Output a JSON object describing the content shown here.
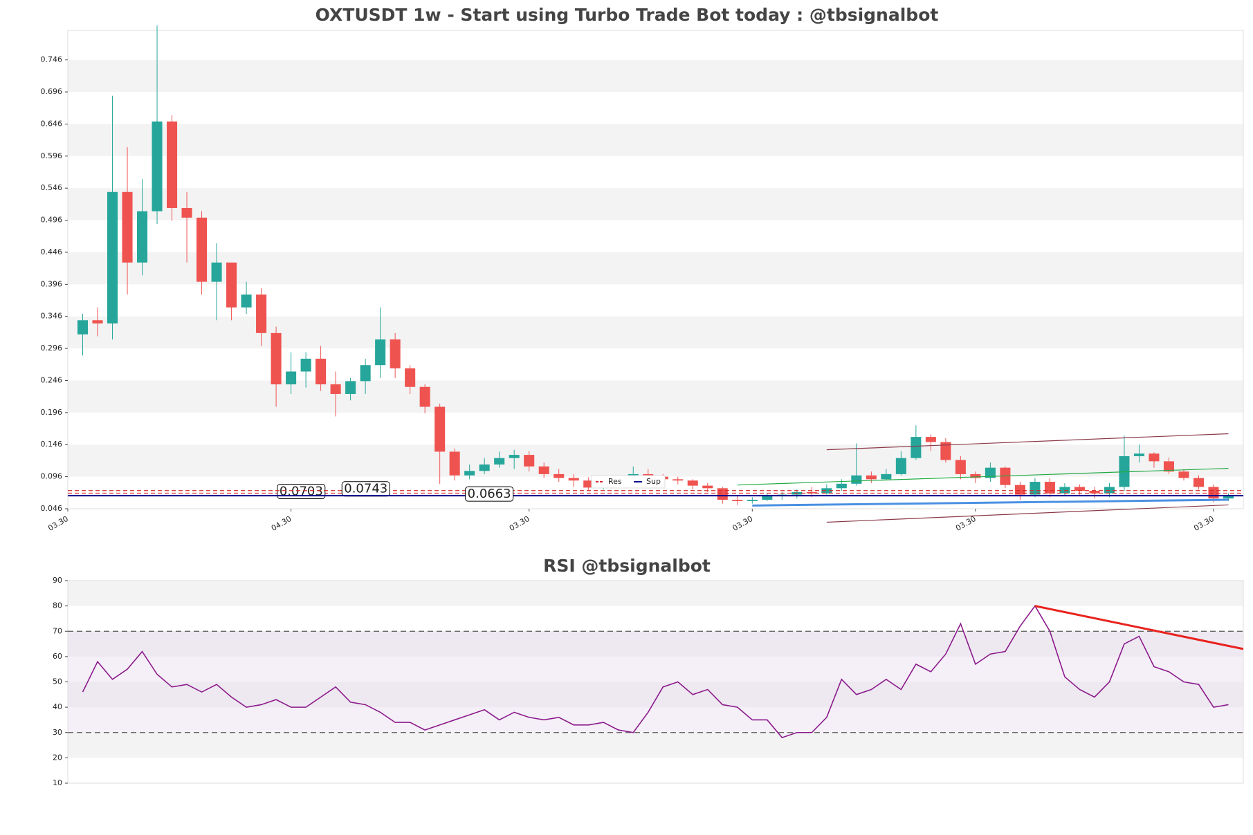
{
  "chart_data": [
    {
      "type": "candlestick",
      "title": "OXTUSDT 1w - Start using Turbo Trade Bot today : @tbsignalbot",
      "up_color": "#26a69a",
      "down_color": "#ef5350",
      "candles": {
        "open": [
          0.318,
          0.34,
          0.335,
          0.54,
          0.43,
          0.51,
          0.65,
          0.515,
          0.5,
          0.4,
          0.43,
          0.36,
          0.38,
          0.32,
          0.24,
          0.26,
          0.28,
          0.24,
          0.225,
          0.245,
          0.27,
          0.31,
          0.265,
          0.236,
          0.205,
          0.135,
          0.098,
          0.105,
          0.115,
          0.125,
          0.13,
          0.112,
          0.1,
          0.094,
          0.09,
          0.079,
          0.082,
          0.085,
          0.1,
          0.096,
          0.092,
          0.09,
          0.082,
          0.078,
          0.06,
          0.058,
          0.06,
          0.066,
          0.068,
          0.072,
          0.07,
          0.078,
          0.085,
          0.098,
          0.092,
          0.1,
          0.125,
          0.158,
          0.15,
          0.122,
          0.1,
          0.094,
          0.11,
          0.083,
          0.068,
          0.088,
          0.07,
          0.08,
          0.074,
          0.07,
          0.08,
          0.128,
          0.132,
          0.12,
          0.104,
          0.094,
          0.08,
          0.062
        ],
        "high": [
          0.35,
          0.36,
          0.69,
          0.61,
          0.56,
          0.8,
          0.66,
          0.54,
          0.51,
          0.46,
          0.43,
          0.4,
          0.39,
          0.33,
          0.29,
          0.29,
          0.3,
          0.26,
          0.25,
          0.28,
          0.36,
          0.32,
          0.27,
          0.24,
          0.21,
          0.14,
          0.115,
          0.125,
          0.135,
          0.138,
          0.136,
          0.118,
          0.108,
          0.1,
          0.095,
          0.09,
          0.092,
          0.112,
          0.108,
          0.1,
          0.096,
          0.092,
          0.086,
          0.08,
          0.066,
          0.064,
          0.07,
          0.072,
          0.076,
          0.08,
          0.084,
          0.092,
          0.148,
          0.104,
          0.108,
          0.136,
          0.176,
          0.162,
          0.156,
          0.128,
          0.104,
          0.118,
          0.112,
          0.088,
          0.094,
          0.094,
          0.086,
          0.084,
          0.08,
          0.086,
          0.16,
          0.146,
          0.134,
          0.126,
          0.108,
          0.098,
          0.084,
          0.07
        ],
        "low": [
          0.285,
          0.315,
          0.31,
          0.38,
          0.41,
          0.49,
          0.495,
          0.43,
          0.38,
          0.34,
          0.34,
          0.35,
          0.3,
          0.205,
          0.225,
          0.235,
          0.23,
          0.19,
          0.215,
          0.225,
          0.25,
          0.25,
          0.225,
          0.195,
          0.085,
          0.09,
          0.092,
          0.1,
          0.11,
          0.108,
          0.104,
          0.094,
          0.088,
          0.08,
          0.074,
          0.076,
          0.078,
          0.08,
          0.088,
          0.086,
          0.084,
          0.076,
          0.072,
          0.054,
          0.052,
          0.054,
          0.058,
          0.06,
          0.062,
          0.064,
          0.068,
          0.074,
          0.082,
          0.086,
          0.09,
          0.098,
          0.122,
          0.136,
          0.118,
          0.092,
          0.086,
          0.088,
          0.078,
          0.06,
          0.064,
          0.064,
          0.066,
          0.068,
          0.062,
          0.064,
          0.074,
          0.118,
          0.11,
          0.1,
          0.09,
          0.076,
          0.056,
          0.058
        ],
        "close": [
          0.34,
          0.335,
          0.54,
          0.43,
          0.51,
          0.65,
          0.515,
          0.5,
          0.4,
          0.43,
          0.36,
          0.38,
          0.32,
          0.24,
          0.26,
          0.28,
          0.24,
          0.225,
          0.245,
          0.27,
          0.31,
          0.265,
          0.236,
          0.205,
          0.135,
          0.098,
          0.105,
          0.115,
          0.125,
          0.13,
          0.112,
          0.1,
          0.094,
          0.09,
          0.079,
          0.082,
          0.085,
          0.1,
          0.096,
          0.092,
          0.09,
          0.082,
          0.078,
          0.06,
          0.058,
          0.06,
          0.066,
          0.068,
          0.072,
          0.07,
          0.078,
          0.085,
          0.098,
          0.092,
          0.1,
          0.125,
          0.158,
          0.15,
          0.122,
          0.1,
          0.094,
          0.11,
          0.083,
          0.068,
          0.088,
          0.07,
          0.08,
          0.074,
          0.07,
          0.08,
          0.128,
          0.132,
          0.12,
          0.104,
          0.094,
          0.08,
          0.062,
          0.066
        ]
      },
      "xlim": [
        -1,
        78
      ],
      "xticks": [
        {
          "value": -1,
          "label": "03.30"
        },
        {
          "value": 14,
          "label": "04.30"
        },
        {
          "value": 30,
          "label": "03.30"
        },
        {
          "value": 45,
          "label": "03.30"
        },
        {
          "value": 60,
          "label": "03.30"
        },
        {
          "value": 76,
          "label": "03.30"
        }
      ],
      "ylim": [
        0.046,
        0.792
      ],
      "yticks": [
        0.046,
        0.096,
        0.146,
        0.196,
        0.246,
        0.296,
        0.346,
        0.396,
        0.446,
        0.496,
        0.546,
        0.596,
        0.646,
        0.696,
        0.746
      ],
      "levels": [
        {
          "name": "Res",
          "color": "#d62728",
          "values": [
            0.0703,
            0.0743
          ]
        },
        {
          "name": "Sup",
          "color": "#00008b",
          "values": [
            0.0663
          ]
        }
      ],
      "trendlines": [
        {
          "color": "#8b3a4a",
          "x": [
            50,
            77
          ],
          "y": [
            0.138,
            0.163
          ]
        },
        {
          "color": "#8b3a4a",
          "x": [
            50,
            77
          ],
          "y": [
            0.025,
            0.052
          ]
        },
        {
          "color": "#22aa44",
          "x": [
            44,
            77
          ],
          "y": [
            0.083,
            0.109
          ]
        },
        {
          "color": "#4a90e2",
          "x": [
            45,
            77
          ],
          "y": [
            0.051,
            0.06
          ]
        }
      ]
    },
    {
      "type": "line",
      "title": "RSI @tbsignalbot",
      "color": "#8b1a8b",
      "values": [
        46,
        58,
        51,
        55,
        62,
        53,
        48,
        49,
        46,
        49,
        44,
        40,
        41,
        43,
        40,
        40,
        44,
        48,
        42,
        41,
        38,
        34,
        34,
        31,
        33,
        35,
        37,
        39,
        35,
        38,
        36,
        35,
        36,
        33,
        33,
        34,
        31,
        30,
        38,
        48,
        50,
        45,
        47,
        41,
        40,
        35,
        35,
        28,
        30,
        30,
        36,
        51,
        45,
        47,
        51,
        47,
        57,
        54,
        61,
        73,
        57,
        61,
        62,
        72,
        80,
        70,
        52,
        47,
        44,
        50,
        65,
        68,
        56,
        54,
        50,
        49,
        40,
        41
      ],
      "xlim": [
        -1,
        78
      ],
      "ylim": [
        10,
        90
      ],
      "yticks": [
        10,
        20,
        30,
        40,
        50,
        60,
        70,
        80,
        90
      ],
      "hlines": [
        70,
        30
      ],
      "trendlines": [
        {
          "color": "#e8231e",
          "x": [
            64,
            78
          ],
          "y": [
            80,
            63
          ]
        }
      ]
    }
  ]
}
